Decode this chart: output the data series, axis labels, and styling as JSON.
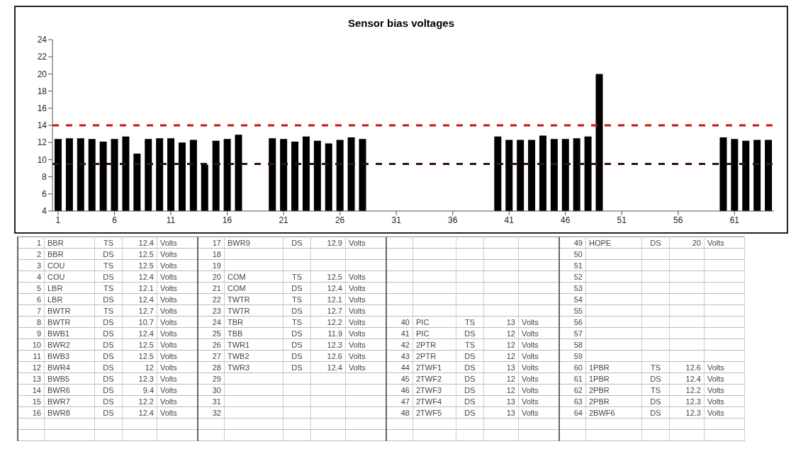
{
  "chart_data": [
    {
      "type": "bar",
      "title": "Sensor bias voltages",
      "x": [
        1,
        2,
        3,
        4,
        5,
        6,
        7,
        8,
        9,
        10,
        11,
        12,
        13,
        14,
        15,
        16,
        17,
        18,
        19,
        20,
        21,
        22,
        23,
        24,
        25,
        26,
        27,
        28,
        29,
        30,
        31,
        32,
        40,
        41,
        42,
        43,
        44,
        45,
        46,
        47,
        48,
        49,
        50,
        51,
        52,
        53,
        54,
        55,
        56,
        57,
        58,
        59,
        60,
        61,
        62,
        63,
        64
      ],
      "values": [
        12.4,
        12.5,
        12.5,
        12.4,
        12.1,
        12.4,
        12.7,
        10.7,
        12.4,
        12.5,
        12.5,
        12,
        12.3,
        9.4,
        12.2,
        12.4,
        12.9,
        null,
        null,
        12.5,
        12.4,
        12.1,
        12.7,
        12.2,
        11.9,
        12.3,
        12.6,
        12.4,
        null,
        null,
        null,
        null,
        12.7,
        12.3,
        12.3,
        12.3,
        12.8,
        12.4,
        12.4,
        12.5,
        12.7,
        20,
        null,
        null,
        null,
        null,
        null,
        null,
        null,
        null,
        null,
        null,
        12.6,
        12.4,
        12.2,
        12.3,
        12.3
      ],
      "color": "#000000",
      "xlim": [
        0.5,
        64.5
      ],
      "xticks": [
        1,
        6,
        11,
        16,
        21,
        26,
        31,
        36,
        41,
        46,
        51,
        56,
        61
      ],
      "ylim": [
        4,
        24
      ],
      "yticks": [
        4,
        6,
        8,
        10,
        12,
        14,
        16,
        18,
        20,
        22,
        24
      ],
      "ref_lines": [
        {
          "axis": "y",
          "value": 14,
          "color": "#cc1111",
          "line_style": "dashed"
        },
        {
          "axis": "y",
          "value": 9.5,
          "color": "#331111",
          "line_style": "dashed"
        }
      ]
    },
    {
      "type": "other",
      "annotations": [
        "1",
        "BBR",
        "TS",
        "12.4",
        "Volts",
        "17",
        "BWR9",
        "DS",
        "12.9",
        "Volts",
        null,
        null,
        null,
        null,
        null,
        "49",
        "HOPE",
        "DS",
        "20",
        "Volts",
        "2",
        "BBR",
        "DS",
        "12.5",
        "Volts",
        "18",
        null,
        null,
        null,
        null,
        null,
        null,
        null,
        null,
        null,
        "50",
        null,
        null,
        null,
        null,
        "3",
        "COU",
        "TS",
        "12.5",
        "Volts",
        "19",
        null,
        null,
        null,
        null,
        null,
        null,
        null,
        null,
        null,
        "51",
        null,
        null,
        null,
        null,
        "4",
        "COU",
        "DS",
        "12.4",
        "Volts",
        "20",
        "COM",
        "TS",
        "12.5",
        "Volts",
        null,
        null,
        null,
        null,
        null,
        "52",
        null,
        null,
        null,
        null,
        "5",
        "LBR",
        "TS",
        "12.1",
        "Volts",
        "21",
        "COM",
        "DS",
        "12.4",
        "Volts",
        null,
        null,
        null,
        null,
        null,
        "53",
        null,
        null,
        null,
        null,
        "6",
        "LBR",
        "DS",
        "12.4",
        "Volts",
        "22",
        "TWTR",
        "TS",
        "12.1",
        "Volts",
        null,
        null,
        null,
        null,
        null,
        "54",
        null,
        null,
        null,
        null,
        "7",
        "BWTR",
        "TS",
        "12.7",
        "Volts",
        "23",
        "TWTR",
        "DS",
        "12.7",
        "Volts",
        null,
        null,
        null,
        null,
        null,
        "55",
        null,
        null,
        null,
        null,
        "8",
        "BWTR",
        "DS",
        "10.7",
        "Volts",
        "24",
        "TBR",
        "TS",
        "12.2",
        "Volts",
        "40",
        "PIC",
        "TS",
        "13",
        "Volts",
        "56",
        null,
        null,
        null,
        null,
        "9",
        "BWB1",
        "DS",
        "12.4",
        "Volts",
        "25",
        "TBB",
        "DS",
        "11.9",
        "Volts",
        "41",
        "PIC",
        "DS",
        "12",
        "Volts",
        "57",
        null,
        null,
        null,
        null,
        "10",
        "BWR2",
        "DS",
        "12.5",
        "Volts",
        "26",
        "TWR1",
        "DS",
        "12.3",
        "Volts",
        "42",
        "2PTR",
        "TS",
        "12",
        "Volts",
        "58",
        null,
        null,
        null,
        null,
        "11",
        "BWB3",
        "DS",
        "12.5",
        "Volts",
        "27",
        "TWB2",
        "DS",
        "12.6",
        "Volts",
        "43",
        "2PTR",
        "DS",
        "12",
        "Volts",
        "59",
        null,
        null,
        null,
        null,
        "12",
        "BWR4",
        "DS",
        "12",
        "Volts",
        "28",
        "TWR3",
        "DS",
        "12.4",
        "Volts",
        "44",
        "2TWF1",
        "DS",
        "13",
        "Volts",
        "60",
        "1PBR",
        "TS",
        "12.6",
        "Volts",
        "13",
        "BWB5",
        "DS",
        "12.3",
        "Volts",
        "29",
        null,
        null,
        null,
        null,
        "45",
        "2TWF2",
        "DS",
        "12",
        "Volts",
        "61",
        "1PBR",
        "DS",
        "12.4",
        "Volts",
        "14",
        "BWR6",
        "DS",
        "9.4",
        "Volts",
        "30",
        null,
        null,
        null,
        null,
        "46",
        "2TWF3",
        "DS",
        "12",
        "Volts",
        "62",
        "2PBR",
        "TS",
        "12.2",
        "Volts",
        "15",
        "BWR7",
        "DS",
        "12.2",
        "Volts",
        "31",
        null,
        null,
        null,
        null,
        "47",
        "2TWF4",
        "DS",
        "13",
        "Volts",
        "63",
        "2PBR",
        "DS",
        "12.3",
        "Volts",
        "16",
        "BWR8",
        "DS",
        "12.4",
        "Volts",
        "32",
        null,
        null,
        null,
        null,
        "48",
        "2TWF5",
        "DS",
        "13",
        "Volts",
        "64",
        "2BWF6",
        "DS",
        "12.3",
        "Volts"
      ]
    }
  ]
}
